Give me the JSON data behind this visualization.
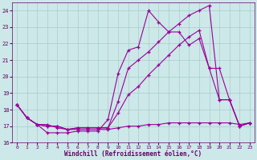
{
  "background_color": "#cce8e8",
  "grid_color": "#aacccc",
  "line_color": "#990099",
  "xlim": [
    -0.5,
    23.5
  ],
  "ylim": [
    16,
    24.5
  ],
  "yticks": [
    16,
    17,
    18,
    19,
    20,
    21,
    22,
    23,
    24
  ],
  "xticks": [
    0,
    1,
    2,
    3,
    4,
    5,
    6,
    7,
    8,
    9,
    10,
    11,
    12,
    13,
    14,
    15,
    16,
    17,
    18,
    19,
    20,
    21,
    22,
    23
  ],
  "xlabel": "Windchill (Refroidissement éolien,°C)",
  "line1_x": [
    0,
    1,
    2,
    3,
    4,
    5,
    6,
    7,
    8,
    9,
    10,
    11,
    12,
    13,
    14,
    15,
    16,
    17,
    18,
    19,
    20,
    21,
    22,
    23
  ],
  "line1_y": [
    18.3,
    17.5,
    17.1,
    16.6,
    16.6,
    16.6,
    16.7,
    16.7,
    16.7,
    17.4,
    20.2,
    21.6,
    21.8,
    24.0,
    23.3,
    22.7,
    22.7,
    21.9,
    22.3,
    20.5,
    20.5,
    18.6,
    17.0,
    17.2
  ],
  "line2_x": [
    0,
    1,
    2,
    3,
    4,
    5,
    6,
    7,
    8,
    9,
    10,
    11,
    12,
    13,
    14,
    15,
    16,
    17,
    18,
    19,
    20,
    21,
    22,
    23
  ],
  "line2_y": [
    18.3,
    17.5,
    17.1,
    17.1,
    16.9,
    16.8,
    16.8,
    16.8,
    16.8,
    16.8,
    16.9,
    17.0,
    17.0,
    17.1,
    17.1,
    17.2,
    17.2,
    17.2,
    17.2,
    17.2,
    17.2,
    17.2,
    17.1,
    17.2
  ],
  "line3_x": [
    0,
    1,
    2,
    3,
    4,
    5,
    6,
    7,
    8,
    9,
    10,
    11,
    12,
    13,
    14,
    15,
    16,
    17,
    18,
    19,
    20,
    21,
    22,
    23
  ],
  "line3_y": [
    18.3,
    17.5,
    17.1,
    17.0,
    17.0,
    16.8,
    16.9,
    16.9,
    16.9,
    16.9,
    17.8,
    18.9,
    19.4,
    20.1,
    20.7,
    21.3,
    21.9,
    22.4,
    22.8,
    20.5,
    18.6,
    18.6,
    17.0,
    17.2
  ],
  "line4_x": [
    0,
    1,
    2,
    3,
    4,
    5,
    6,
    7,
    8,
    9,
    10,
    11,
    12,
    13,
    14,
    15,
    16,
    17,
    18,
    19,
    20,
    21,
    22,
    23
  ],
  "line4_y": [
    18.3,
    17.5,
    17.1,
    17.0,
    17.0,
    16.8,
    16.9,
    16.9,
    16.9,
    16.9,
    18.5,
    20.5,
    21.0,
    21.5,
    22.1,
    22.7,
    23.2,
    23.7,
    24.0,
    24.3,
    18.6,
    18.6,
    17.0,
    17.2
  ]
}
